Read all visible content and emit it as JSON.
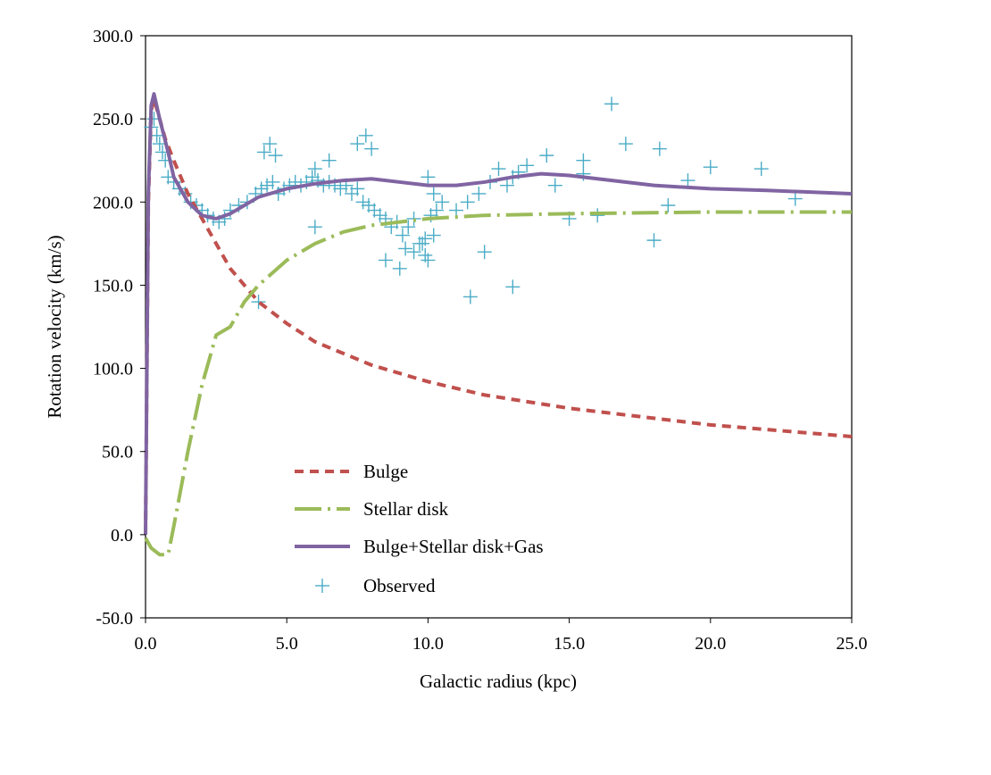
{
  "chart_data": {
    "type": "line",
    "xlabel": "Galactic radius (kpc)",
    "ylabel": "Rotation velocity (km/s)",
    "xlim": [
      0,
      25
    ],
    "ylim": [
      -50,
      300
    ],
    "x_ticks": [
      "0.0",
      "5.0",
      "10.0",
      "15.0",
      "20.0",
      "25.0"
    ],
    "y_ticks": [
      "-50.0",
      "0.0",
      "50.0",
      "100.0",
      "150.0",
      "200.0",
      "250.0",
      "300.0"
    ],
    "grid": false,
    "legend_position": "bottom-center",
    "series": [
      {
        "name": "Bulge",
        "style": "dashed",
        "color": "#c0504d",
        "x": [
          0.0,
          0.1,
          0.2,
          0.3,
          0.5,
          0.7,
          1.0,
          1.5,
          2.0,
          3.0,
          4.0,
          5.0,
          6.0,
          8.0,
          10.0,
          12.0,
          15.0,
          20.0,
          25.0
        ],
        "y": [
          0,
          200,
          255,
          262,
          250,
          238,
          225,
          205,
          190,
          160,
          140,
          127,
          116,
          102,
          92,
          84,
          76,
          66,
          59
        ]
      },
      {
        "name": "Stellar disk",
        "style": "dash-dot",
        "color": "#9bbb59",
        "x": [
          0.0,
          0.2,
          0.5,
          0.8,
          1.0,
          1.5,
          2.0,
          2.5,
          3.0,
          3.5,
          4.0,
          5.0,
          6.0,
          7.0,
          8.0,
          10.0,
          12.0,
          15.0,
          20.0,
          25.0
        ],
        "y": [
          -2,
          -8,
          -12,
          -12,
          5,
          50,
          90,
          120,
          125,
          140,
          150,
          165,
          175,
          182,
          186,
          190,
          192,
          193,
          194,
          194
        ]
      },
      {
        "name": "Bulge+Stellar disk+Gas",
        "style": "solid",
        "color": "#8064a2",
        "x": [
          0.0,
          0.1,
          0.2,
          0.3,
          0.5,
          0.8,
          1.0,
          1.5,
          2.0,
          2.5,
          3.0,
          3.5,
          4.0,
          5.0,
          6.0,
          7.0,
          8.0,
          9.0,
          10.0,
          11.0,
          12.0,
          13.0,
          14.0,
          15.0,
          16.0,
          18.0,
          20.0,
          22.0,
          25.0
        ],
        "y": [
          0,
          205,
          258,
          265,
          250,
          230,
          215,
          200,
          192,
          190,
          193,
          198,
          203,
          208,
          211,
          213,
          214,
          212,
          210,
          210,
          212,
          215,
          217,
          216,
          214,
          210,
          208,
          207,
          205
        ]
      },
      {
        "name": "Observed",
        "style": "markers",
        "color": "#4bacc6",
        "x": [
          0.2,
          0.3,
          0.4,
          0.5,
          0.6,
          0.7,
          0.8,
          1.0,
          1.2,
          1.4,
          1.6,
          1.8,
          2.0,
          2.2,
          2.4,
          2.6,
          2.8,
          3.0,
          3.3,
          3.6,
          3.9,
          4.1,
          4.3,
          4.5,
          4.7,
          4.9,
          5.1,
          5.3,
          5.5,
          5.7,
          5.9,
          6.1,
          6.3,
          6.5,
          6.7,
          6.9,
          7.1,
          7.3,
          7.5,
          7.7,
          7.9,
          8.1,
          8.3,
          8.5,
          8.7,
          8.9,
          9.1,
          9.3,
          9.5,
          9.7,
          9.9,
          10.1,
          10.3,
          4.2,
          4.4,
          4.6,
          6.0,
          6.5,
          7.5,
          7.8,
          8.0,
          9.5,
          9.9,
          10.0,
          10.2,
          10.5,
          8.5,
          9.0,
          9.2,
          9.8,
          10.0,
          10.2,
          11.0,
          11.4,
          11.8,
          12.2,
          12.5,
          12.8,
          13.0,
          13.2,
          13.5,
          14.2,
          14.5,
          15.5,
          16.0,
          16.5,
          17.0,
          18.0,
          18.2,
          18.5,
          19.2,
          20.0,
          21.8,
          23.0,
          11.5,
          12.0,
          13.0,
          15.0,
          15.5,
          6.0,
          4.0
        ],
        "y": [
          245,
          250,
          240,
          235,
          230,
          225,
          215,
          212,
          208,
          205,
          200,
          198,
          195,
          192,
          190,
          188,
          190,
          195,
          198,
          200,
          205,
          208,
          210,
          212,
          205,
          208,
          210,
          212,
          210,
          212,
          215,
          213,
          210,
          212,
          210,
          208,
          210,
          205,
          208,
          200,
          198,
          195,
          192,
          190,
          185,
          188,
          180,
          185,
          190,
          175,
          178,
          192,
          195,
          230,
          235,
          228,
          220,
          225,
          235,
          240,
          232,
          170,
          168,
          165,
          180,
          200,
          165,
          160,
          172,
          175,
          215,
          205,
          195,
          200,
          205,
          212,
          220,
          210,
          215,
          218,
          222,
          228,
          210,
          225,
          192,
          259,
          235,
          177,
          232,
          198,
          213,
          221,
          220,
          202,
          143,
          170,
          149,
          190,
          217,
          185,
          140
        ]
      }
    ]
  }
}
